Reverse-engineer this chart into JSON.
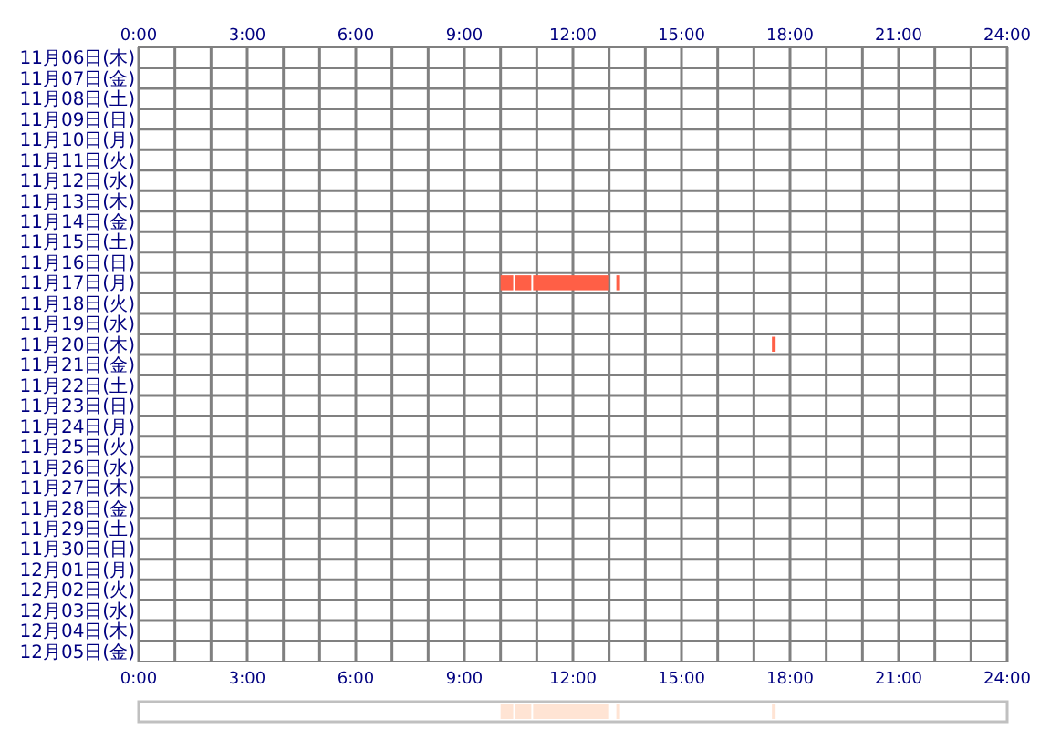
{
  "chart_data": [
    {
      "type": "bar",
      "orientation": "horizontal",
      "grid": true,
      "categories": [
        "11月06日(木)",
        "11月07日(金)",
        "11月08日(土)",
        "11月09日(日)",
        "11月10日(月)",
        "11月11日(火)",
        "11月12日(水)",
        "11月13日(木)",
        "11月14日(金)",
        "11月15日(土)",
        "11月16日(日)",
        "11月17日(月)",
        "11月18日(火)",
        "11月19日(水)",
        "11月20日(木)",
        "11月21日(金)",
        "11月22日(土)",
        "11月23日(日)",
        "11月24日(月)",
        "11月25日(火)",
        "11月26日(水)",
        "11月27日(木)",
        "11月28日(金)",
        "11月29日(土)",
        "11月30日(日)",
        "12月01日(月)",
        "12月02日(火)",
        "12月03日(水)",
        "12月04日(木)",
        "12月05日(金)"
      ],
      "series": [
        {
          "color": "#ff5f46",
          "base": [
            null,
            null,
            null,
            null,
            null,
            null,
            null,
            null,
            null,
            null,
            null,
            10.0,
            null,
            null,
            17.5,
            null,
            null,
            null,
            null,
            null,
            null,
            null,
            null,
            null,
            null,
            null,
            null,
            null,
            null,
            null
          ],
          "values": [
            null,
            null,
            null,
            null,
            null,
            null,
            null,
            null,
            null,
            null,
            null,
            0.35,
            null,
            null,
            0.05,
            null,
            null,
            null,
            null,
            null,
            null,
            null,
            null,
            null,
            null,
            null,
            null,
            null,
            null,
            null
          ]
        },
        {
          "color": "#ff5f46",
          "base": [
            null,
            null,
            null,
            null,
            null,
            null,
            null,
            null,
            null,
            null,
            null,
            10.4,
            null,
            null,
            null,
            null,
            null,
            null,
            null,
            null,
            null,
            null,
            null,
            null,
            null,
            null,
            null,
            null,
            null,
            null
          ],
          "values": [
            null,
            null,
            null,
            null,
            null,
            null,
            null,
            null,
            null,
            null,
            null,
            0.45,
            null,
            null,
            null,
            null,
            null,
            null,
            null,
            null,
            null,
            null,
            null,
            null,
            null,
            null,
            null,
            null,
            null,
            null
          ]
        },
        {
          "color": "#ff5f46",
          "base": [
            null,
            null,
            null,
            null,
            null,
            null,
            null,
            null,
            null,
            null,
            null,
            10.9,
            null,
            null,
            null,
            null,
            null,
            null,
            null,
            null,
            null,
            null,
            null,
            null,
            null,
            null,
            null,
            null,
            null,
            null
          ],
          "values": [
            null,
            null,
            null,
            null,
            null,
            null,
            null,
            null,
            null,
            null,
            null,
            2.1,
            null,
            null,
            null,
            null,
            null,
            null,
            null,
            null,
            null,
            null,
            null,
            null,
            null,
            null,
            null,
            null,
            null,
            null
          ]
        },
        {
          "color": "#ff5f46",
          "base": [
            null,
            null,
            null,
            null,
            null,
            null,
            null,
            null,
            null,
            null,
            null,
            13.2,
            null,
            null,
            null,
            null,
            null,
            null,
            null,
            null,
            null,
            null,
            null,
            null,
            null,
            null,
            null,
            null,
            null,
            null
          ],
          "values": [
            null,
            null,
            null,
            null,
            null,
            null,
            null,
            null,
            null,
            null,
            null,
            0.05,
            null,
            null,
            null,
            null,
            null,
            null,
            null,
            null,
            null,
            null,
            null,
            null,
            null,
            null,
            null,
            null,
            null,
            null
          ]
        }
      ],
      "xlim": [
        0,
        24
      ],
      "xticks": [
        {
          "value": 0,
          "label": "0:00"
        },
        {
          "value": 1,
          "label": null
        },
        {
          "value": 2,
          "label": null
        },
        {
          "value": 3,
          "label": "3:00"
        },
        {
          "value": 4,
          "label": null
        },
        {
          "value": 5,
          "label": null
        },
        {
          "value": 6,
          "label": "6:00"
        },
        {
          "value": 7,
          "label": null
        },
        {
          "value": 8,
          "label": null
        },
        {
          "value": 9,
          "label": "9:00"
        },
        {
          "value": 10,
          "label": null
        },
        {
          "value": 11,
          "label": null
        },
        {
          "value": 12,
          "label": "12:00"
        },
        {
          "value": 13,
          "label": null
        },
        {
          "value": 14,
          "label": null
        },
        {
          "value": 15,
          "label": "15:00"
        },
        {
          "value": 16,
          "label": null
        },
        {
          "value": 17,
          "label": null
        },
        {
          "value": 18,
          "label": "18:00"
        },
        {
          "value": 19,
          "label": null
        },
        {
          "value": 20,
          "label": null
        },
        {
          "value": 21,
          "label": "21:00"
        },
        {
          "value": 22,
          "label": null
        },
        {
          "value": 23,
          "label": null
        },
        {
          "value": 24,
          "label": "24:00"
        }
      ],
      "x2lim": [
        0,
        24
      ],
      "x2ticks": [
        {
          "value": 0,
          "label": "0:00"
        },
        {
          "value": 3,
          "label": "3:00"
        },
        {
          "value": 6,
          "label": "6:00"
        },
        {
          "value": 9,
          "label": "9:00"
        },
        {
          "value": 12,
          "label": "12:00"
        },
        {
          "value": 15,
          "label": "15:00"
        },
        {
          "value": 18,
          "label": "18:00"
        },
        {
          "value": 21,
          "label": "21:00"
        },
        {
          "value": 24,
          "label": "24:00"
        }
      ]
    },
    {
      "type": "bar",
      "orientation": "horizontal",
      "categories": [
        null
      ],
      "xlim": [
        0,
        24
      ],
      "series": [
        {
          "color": "#ffe4d4",
          "base": [
            10.0
          ],
          "values": [
            0.35
          ]
        },
        {
          "color": "#ffe4d4",
          "base": [
            10.4
          ],
          "values": [
            0.45
          ]
        },
        {
          "color": "#ffe4d4",
          "base": [
            10.9
          ],
          "values": [
            2.1
          ]
        },
        {
          "color": "#ffe4d4",
          "base": [
            13.2
          ],
          "values": [
            0.05
          ]
        },
        {
          "color": "#ffe4d4",
          "base": [
            17.5
          ],
          "values": [
            0.05
          ]
        }
      ]
    }
  ]
}
